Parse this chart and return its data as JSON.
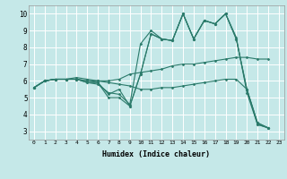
{
  "xlabel": "Humidex (Indice chaleur)",
  "bg_color": "#c5e8e8",
  "grid_color": "#ffffff",
  "line_color": "#2a7a6a",
  "xlim": [
    -0.5,
    23.5
  ],
  "ylim": [
    2.5,
    10.5
  ],
  "xticks": [
    0,
    1,
    2,
    3,
    4,
    5,
    6,
    7,
    8,
    9,
    10,
    11,
    12,
    13,
    14,
    15,
    16,
    17,
    18,
    19,
    20,
    21,
    22,
    23
  ],
  "yticks": [
    3,
    4,
    5,
    6,
    7,
    8,
    9,
    10
  ],
  "lines": [
    {
      "x": [
        0,
        1,
        2,
        3,
        4,
        5,
        6,
        7,
        8,
        9,
        10,
        11,
        12,
        13,
        14,
        15,
        16,
        17,
        18,
        19,
        20,
        21,
        22
      ],
      "y": [
        5.6,
        6.0,
        6.1,
        6.1,
        6.1,
        6.0,
        6.0,
        6.0,
        6.1,
        6.4,
        6.5,
        6.6,
        6.7,
        6.9,
        7.0,
        7.0,
        7.1,
        7.2,
        7.3,
        7.4,
        7.4,
        7.3,
        7.3
      ]
    },
    {
      "x": [
        0,
        1,
        2,
        3,
        4,
        5,
        6,
        7,
        8,
        9,
        10,
        11,
        12,
        13,
        14,
        15,
        16,
        17,
        18,
        19,
        20,
        21,
        22
      ],
      "y": [
        5.6,
        6.0,
        6.1,
        6.1,
        6.1,
        6.0,
        5.9,
        5.0,
        5.0,
        4.5,
        6.4,
        8.8,
        8.5,
        8.4,
        10.0,
        8.5,
        9.6,
        9.4,
        10.0,
        8.6,
        5.3,
        3.4,
        3.2
      ]
    },
    {
      "x": [
        0,
        1,
        2,
        3,
        4,
        5,
        6,
        7,
        8,
        9,
        10,
        11,
        12,
        13,
        14,
        15,
        16,
        17,
        18,
        19,
        20,
        21,
        22
      ],
      "y": [
        5.6,
        6.0,
        6.1,
        6.1,
        6.1,
        5.9,
        5.8,
        5.3,
        5.2,
        4.6,
        8.2,
        9.0,
        8.5,
        8.4,
        10.0,
        8.5,
        9.6,
        9.4,
        10.0,
        8.5,
        5.5,
        3.5,
        3.2
      ]
    },
    {
      "x": [
        0,
        1,
        2,
        3,
        4,
        5,
        6,
        7,
        8,
        9,
        10,
        11,
        12,
        13,
        14,
        15,
        16,
        17,
        18,
        19,
        20,
        21,
        22
      ],
      "y": [
        5.6,
        6.0,
        6.1,
        6.1,
        6.1,
        5.9,
        5.9,
        5.2,
        5.5,
        4.5,
        6.4,
        8.8,
        8.5,
        8.4,
        10.0,
        8.5,
        9.6,
        9.4,
        10.0,
        8.5,
        5.5,
        3.4,
        3.2
      ]
    },
    {
      "x": [
        0,
        1,
        2,
        3,
        4,
        5,
        6,
        7,
        8,
        9,
        10,
        11,
        12,
        13,
        14,
        15,
        16,
        17,
        18,
        19,
        20,
        21,
        22
      ],
      "y": [
        5.6,
        6.0,
        6.1,
        6.1,
        6.2,
        6.1,
        6.0,
        5.9,
        5.8,
        5.7,
        5.5,
        5.5,
        5.6,
        5.6,
        5.7,
        5.8,
        5.9,
        6.0,
        6.1,
        6.1,
        5.5,
        3.5,
        3.2
      ]
    }
  ]
}
